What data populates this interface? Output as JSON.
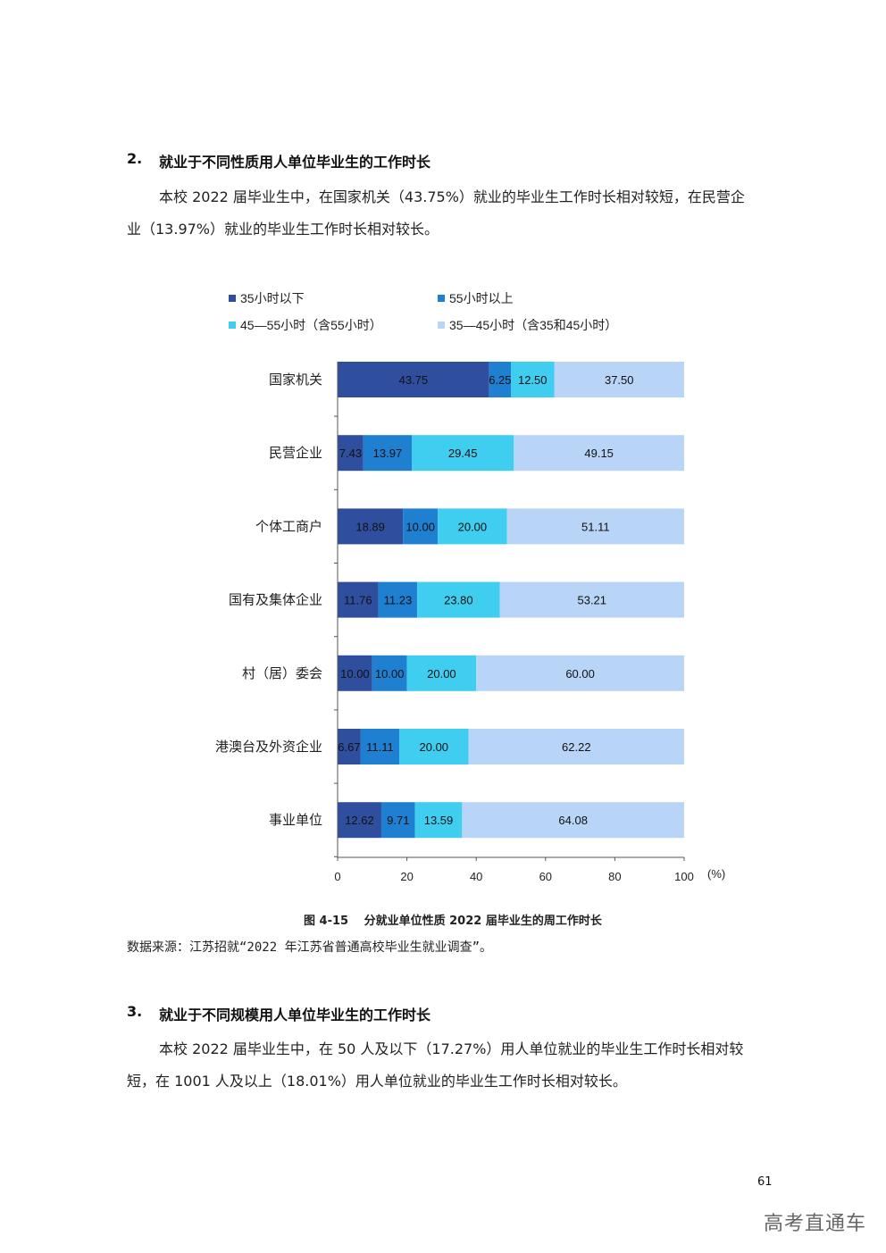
{
  "section2": {
    "number": "2.",
    "title": "就业于不同性质用人单位毕业生的工作时长",
    "para_line1": "本校 2022 届毕业生中，在国家机关（43.75%）就业的毕业生工作时长相对较短，在民营企",
    "para_line2": "业（13.97%）就业的毕业生工作时长相对较长。"
  },
  "figure": {
    "caption": "图 4-15　 分就业单位性质 2022 届毕业生的周工作时长",
    "source": "数据来源：江苏招就“2022 年江苏省普通高校毕业生就业调查”。"
  },
  "section3": {
    "number": "3.",
    "title": "就业于不同规模用人单位毕业生的工作时长",
    "para_line1": "本校 2022 届毕业生中，在 50 人及以下（17.27%）用人单位就业的毕业生工作时长相对较",
    "para_line2": "短，在 1001 人及以上（18.01%）用人单位就业的毕业生工作时长相对较长。"
  },
  "page_number": "61",
  "watermark": "高考直通车",
  "chart_data": {
    "type": "bar",
    "orientation": "horizontal",
    "stacked": true,
    "categories": [
      "国家机关",
      "民营企业",
      "个体工商户",
      "国有及集体企业",
      "村（居）委会",
      "港澳台及外资企业",
      "事业单位"
    ],
    "series": [
      {
        "name": "35小时以下",
        "color": "#2f4f9e",
        "values": [
          43.75,
          7.43,
          18.89,
          11.76,
          10.0,
          6.67,
          12.62
        ],
        "labels": [
          "43.75",
          "7.43",
          "18.89",
          "11.76",
          "10.00",
          "6.67",
          "12.62"
        ]
      },
      {
        "name": "55小时以上",
        "color": "#1f7fd1",
        "values": [
          6.25,
          13.97,
          10.0,
          11.23,
          10.0,
          11.11,
          9.71
        ],
        "labels": [
          "6.25",
          "13.97",
          "10.00",
          "11.23",
          "10.00",
          "11.11",
          "9.71"
        ]
      },
      {
        "name": "45—55小时（含55小时）",
        "color": "#3fcdf0",
        "values": [
          12.5,
          29.45,
          20.0,
          23.8,
          20.0,
          20.0,
          13.59
        ],
        "labels": [
          "12.50",
          "29.45",
          "20.00",
          "23.80",
          "20.00",
          "20.00",
          "13.59"
        ]
      },
      {
        "name": "35—45小时（含35和45小时）",
        "color": "#b8d4f7",
        "values": [
          37.5,
          49.15,
          51.11,
          53.21,
          60.0,
          62.22,
          64.08
        ],
        "labels": [
          "37.50",
          "49.15",
          "51.11",
          "53.21",
          "60.00",
          "62.22",
          "64.08"
        ]
      }
    ],
    "xlim": [
      0,
      100
    ],
    "xticks": [
      "0",
      "20",
      "40",
      "60",
      "80",
      "100"
    ],
    "xunit": "(%)",
    "legend_position": "top",
    "grid": false
  }
}
